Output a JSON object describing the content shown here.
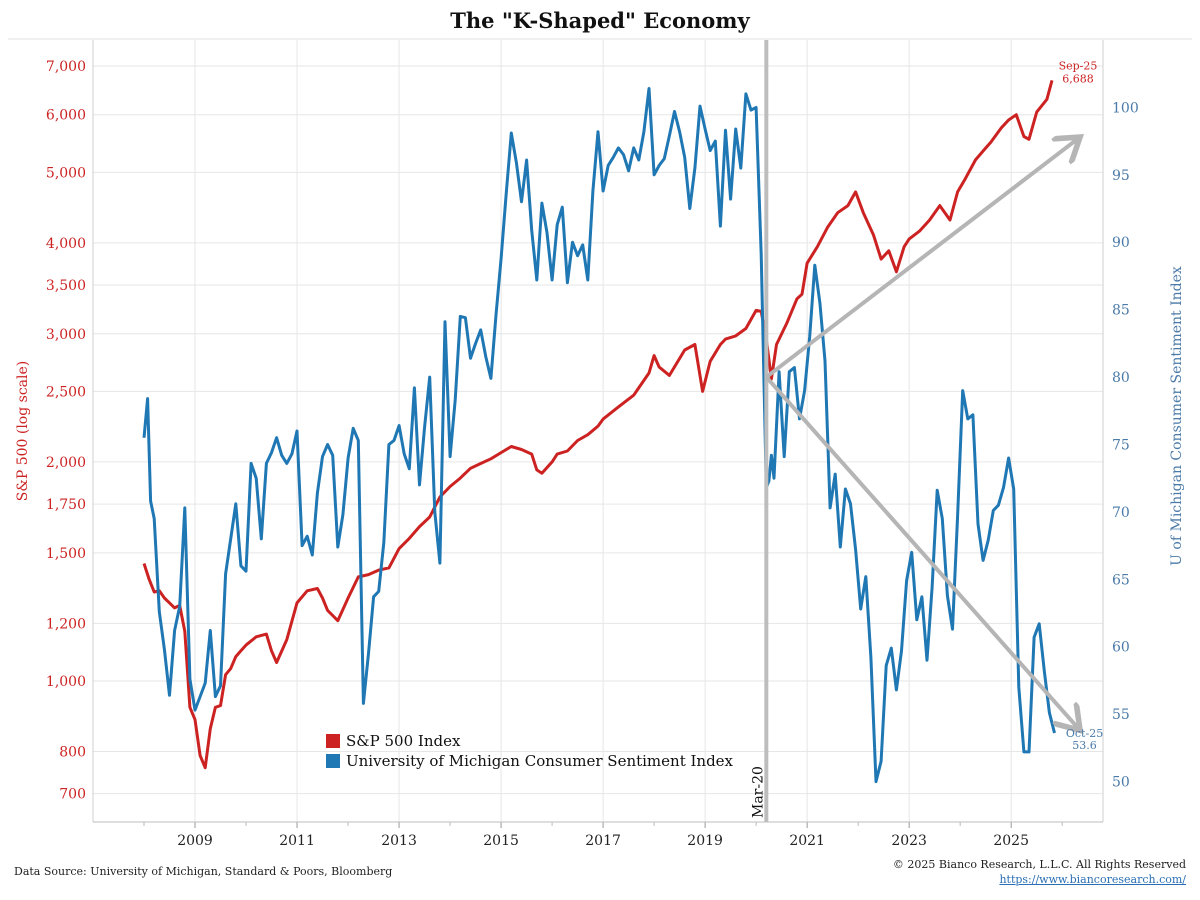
{
  "chart_data": {
    "type": "line",
    "title": "The \"K-Shaped\" Economy",
    "left_axis": {
      "label": "S&P 500 (log scale)",
      "scale": "log",
      "range": [
        640,
        7600
      ],
      "ticks": [
        700,
        800,
        1000,
        1200,
        1500,
        1750,
        2000,
        2500,
        3000,
        3500,
        4000,
        5000,
        6000,
        7000
      ],
      "tick_labels": [
        "700",
        "800",
        "1,000",
        "1,200",
        "1,500",
        "1,750",
        "2,000",
        "2,500",
        "3,000",
        "3,500",
        "4,000",
        "5,000",
        "6,000",
        "7,000"
      ]
    },
    "right_axis": {
      "label": "U of Michigan Consumer Sentiment Index",
      "range": [
        47,
        105
      ],
      "ticks": [
        50,
        55,
        60,
        65,
        70,
        75,
        80,
        85,
        90,
        95,
        100
      ]
    },
    "x_axis": {
      "range": [
        2007.0,
        2026.8
      ],
      "ticks": [
        2009,
        2011,
        2013,
        2015,
        2017,
        2019,
        2021,
        2023,
        2025
      ],
      "tick_labels": [
        "2009",
        "2011",
        "2013",
        "2015",
        "2017",
        "2019",
        "2021",
        "2023",
        "2025"
      ]
    },
    "series": [
      {
        "name": "S&P 500 Index",
        "color": "#cc2222",
        "axis": "left",
        "x": [
          2008.0,
          2008.1,
          2008.2,
          2008.3,
          2008.4,
          2008.5,
          2008.6,
          2008.7,
          2008.8,
          2008.9,
          2009.0,
          2009.1,
          2009.2,
          2009.3,
          2009.4,
          2009.5,
          2009.6,
          2009.7,
          2009.8,
          2009.9,
          2010.0,
          2010.2,
          2010.4,
          2010.5,
          2010.6,
          2010.8,
          2011.0,
          2011.2,
          2011.4,
          2011.5,
          2011.6,
          2011.7,
          2011.8,
          2012.0,
          2012.2,
          2012.4,
          2012.6,
          2012.8,
          2013.0,
          2013.2,
          2013.4,
          2013.6,
          2013.8,
          2014.0,
          2014.2,
          2014.4,
          2014.6,
          2014.8,
          2015.0,
          2015.2,
          2015.4,
          2015.6,
          2015.7,
          2015.8,
          2016.0,
          2016.1,
          2016.3,
          2016.5,
          2016.7,
          2016.9,
          2017.0,
          2017.3,
          2017.6,
          2017.9,
          2018.0,
          2018.1,
          2018.3,
          2018.6,
          2018.8,
          2018.95,
          2019.1,
          2019.3,
          2019.4,
          2019.6,
          2019.8,
          2020.0,
          2020.1,
          2020.2,
          2020.3,
          2020.4,
          2020.6,
          2020.8,
          2020.9,
          2021.0,
          2021.2,
          2021.4,
          2021.6,
          2021.8,
          2021.95,
          2022.1,
          2022.3,
          2022.45,
          2022.6,
          2022.75,
          2022.9,
          2023.0,
          2023.2,
          2023.4,
          2023.6,
          2023.8,
          2023.95,
          2024.1,
          2024.3,
          2024.5,
          2024.6,
          2024.8,
          2024.95,
          2025.1,
          2025.25,
          2025.35,
          2025.5,
          2025.7,
          2025.8
        ],
        "values": [
          1450,
          1380,
          1325,
          1330,
          1300,
          1280,
          1260,
          1270,
          1170,
          920,
          885,
          790,
          760,
          860,
          920,
          925,
          1020,
          1040,
          1080,
          1100,
          1120,
          1150,
          1160,
          1100,
          1060,
          1140,
          1280,
          1330,
          1340,
          1300,
          1250,
          1230,
          1210,
          1300,
          1390,
          1400,
          1420,
          1430,
          1520,
          1570,
          1630,
          1680,
          1790,
          1850,
          1900,
          1960,
          1990,
          2020,
          2060,
          2100,
          2080,
          2050,
          1950,
          1930,
          2000,
          2050,
          2070,
          2140,
          2180,
          2240,
          2290,
          2380,
          2470,
          2650,
          2800,
          2700,
          2630,
          2850,
          2900,
          2500,
          2750,
          2900,
          2950,
          2980,
          3050,
          3230,
          3220,
          2950,
          2600,
          2900,
          3100,
          3350,
          3400,
          3750,
          3950,
          4200,
          4400,
          4500,
          4700,
          4400,
          4100,
          3800,
          3900,
          3650,
          3950,
          4050,
          4150,
          4300,
          4500,
          4300,
          4700,
          4900,
          5200,
          5400,
          5500,
          5750,
          5900,
          6000,
          5600,
          5550,
          6050,
          6300,
          6688
        ]
      },
      {
        "name": "University of Michigan Consumer Sentiment Index",
        "color": "#1f77b4",
        "axis": "right",
        "x": [
          2008.0,
          2008.07,
          2008.13,
          2008.2,
          2008.3,
          2008.4,
          2008.5,
          2008.6,
          2008.7,
          2008.8,
          2008.9,
          2009.0,
          2009.1,
          2009.2,
          2009.3,
          2009.4,
          2009.5,
          2009.6,
          2009.7,
          2009.8,
          2009.9,
          2010.0,
          2010.1,
          2010.2,
          2010.3,
          2010.4,
          2010.5,
          2010.6,
          2010.7,
          2010.8,
          2010.9,
          2011.0,
          2011.1,
          2011.2,
          2011.3,
          2011.4,
          2011.5,
          2011.6,
          2011.7,
          2011.8,
          2011.9,
          2012.0,
          2012.1,
          2012.2,
          2012.3,
          2012.4,
          2012.5,
          2012.6,
          2012.7,
          2012.8,
          2012.9,
          2013.0,
          2013.1,
          2013.2,
          2013.3,
          2013.4,
          2013.5,
          2013.6,
          2013.7,
          2013.8,
          2013.9,
          2014.0,
          2014.1,
          2014.2,
          2014.3,
          2014.4,
          2014.5,
          2014.6,
          2014.7,
          2014.8,
          2014.9,
          2015.0,
          2015.1,
          2015.2,
          2015.3,
          2015.4,
          2015.5,
          2015.6,
          2015.7,
          2015.8,
          2015.9,
          2016.0,
          2016.1,
          2016.2,
          2016.3,
          2016.4,
          2016.5,
          2016.6,
          2016.7,
          2016.8,
          2016.9,
          2017.0,
          2017.1,
          2017.2,
          2017.3,
          2017.4,
          2017.5,
          2017.6,
          2017.7,
          2017.8,
          2017.9,
          2018.0,
          2018.1,
          2018.2,
          2018.3,
          2018.4,
          2018.5,
          2018.6,
          2018.7,
          2018.8,
          2018.9,
          2019.0,
          2019.1,
          2019.2,
          2019.3,
          2019.4,
          2019.5,
          2019.6,
          2019.7,
          2019.8,
          2019.9,
          2020.0,
          2020.1,
          2020.2,
          2020.25,
          2020.3,
          2020.35,
          2020.45,
          2020.55,
          2020.65,
          2020.75,
          2020.85,
          2020.95,
          2021.05,
          2021.15,
          2021.25,
          2021.35,
          2021.45,
          2021.55,
          2021.65,
          2021.75,
          2021.85,
          2021.95,
          2022.05,
          2022.15,
          2022.25,
          2022.35,
          2022.45,
          2022.55,
          2022.65,
          2022.75,
          2022.85,
          2022.95,
          2023.05,
          2023.15,
          2023.25,
          2023.35,
          2023.45,
          2023.55,
          2023.65,
          2023.75,
          2023.85,
          2023.95,
          2024.05,
          2024.15,
          2024.25,
          2024.35,
          2024.45,
          2024.55,
          2024.65,
          2024.75,
          2024.85,
          2024.95,
          2025.05,
          2025.15,
          2025.25,
          2025.35,
          2025.45,
          2025.55,
          2025.65,
          2025.75,
          2025.85
        ],
        "values": [
          75.5,
          78.4,
          70.8,
          69.5,
          62.6,
          59.8,
          56.4,
          61.2,
          63.0,
          70.3,
          57.6,
          55.3,
          56.3,
          57.3,
          61.2,
          56.3,
          57.1,
          65.4,
          68.0,
          70.6,
          66.0,
          65.6,
          73.6,
          72.5,
          68.0,
          73.6,
          74.4,
          75.5,
          74.2,
          73.6,
          74.3,
          76.0,
          67.5,
          68.2,
          66.8,
          71.4,
          74.1,
          75.0,
          74.2,
          67.4,
          69.8,
          74.0,
          76.2,
          75.3,
          55.8,
          59.5,
          63.7,
          64.1,
          67.7,
          75.0,
          75.3,
          76.4,
          74.3,
          73.2,
          79.2,
          72.0,
          76.3,
          80.0,
          70.0,
          66.2,
          84.1,
          74.1,
          78.3,
          84.5,
          84.4,
          81.4,
          82.5,
          83.5,
          81.5,
          79.9,
          84.6,
          88.8,
          93.6,
          98.1,
          95.9,
          93.0,
          96.1,
          90.9,
          87.2,
          92.9,
          90.7,
          87.2,
          91.3,
          92.6,
          87.0,
          90.0,
          89.0,
          89.8,
          87.2,
          93.8,
          98.2,
          93.8,
          95.7,
          96.3,
          97.0,
          96.5,
          95.3,
          97.0,
          96.1,
          98.2,
          101.4,
          95.0,
          95.7,
          96.2,
          97.9,
          99.7,
          98.2,
          96.3,
          92.5,
          95.5,
          100.1,
          98.4,
          96.8,
          97.5,
          91.2,
          98.3,
          93.2,
          98.4,
          95.5,
          101.0,
          99.8,
          100.0,
          89.1,
          71.8,
          72.3,
          74.2,
          72.5,
          80.4,
          74.1,
          80.4,
          80.7,
          76.9,
          79.0,
          83.0,
          88.3,
          85.5,
          81.2,
          70.3,
          72.8,
          67.4,
          71.7,
          70.6,
          67.2,
          62.8,
          65.2,
          59.2,
          50.0,
          51.5,
          58.6,
          59.9,
          56.8,
          59.7,
          64.9,
          67.0,
          62.0,
          63.7,
          59.0,
          64.4,
          71.6,
          69.5,
          63.8,
          61.3,
          69.7,
          79.0,
          76.9,
          77.2,
          69.1,
          66.4,
          67.9,
          70.1,
          70.5,
          71.8,
          74.0,
          71.7,
          57.0,
          52.2,
          52.2,
          60.7,
          61.7,
          58.2,
          55.1,
          53.6
        ]
      }
    ],
    "annotations": {
      "event_line": {
        "label": "Mar-20",
        "x": 2020.2
      },
      "sp500_end": {
        "date": "Sep-25",
        "value": "6,688"
      },
      "umich_end": {
        "date": "Oct-25",
        "value": "53.6"
      },
      "k_arrows": [
        {
          "name": "upper-arm",
          "from": [
            2020.2,
            80.0
          ],
          "to": [
            2026.35,
            97.8
          ]
        },
        {
          "name": "lower-arm",
          "from": [
            2020.2,
            80.0
          ],
          "to": [
            2026.35,
            53.8
          ]
        }
      ]
    }
  },
  "legend": {
    "sp500_label": "S&P 500 Index",
    "umich_label": "University of Michigan Consumer Sentiment Index",
    "sp500_color": "#cc2222",
    "umich_color": "#1f77b4"
  },
  "footer": {
    "source": "Data Source: University of Michigan, Standard & Poors, Bloomberg",
    "copyright": "© 2025 Bianco Research, L.L.C. All Rights Reserved",
    "url": "https://www.biancoresearch.com/"
  }
}
